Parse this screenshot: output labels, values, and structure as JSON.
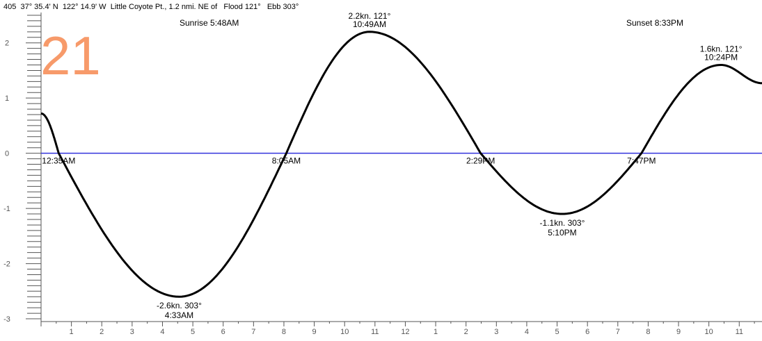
{
  "header": {
    "station_number": "405",
    "latitude": "37° 35.4' N",
    "longitude": "122° 14.9' W",
    "station_name": "Little Coyote Pt., 1.2 nmi. NE of",
    "flood": "Flood 121°",
    "ebb": "Ebb 303°"
  },
  "day_number": "21",
  "sunrise": "Sunrise 5:48AM",
  "sunset": "Sunset 8:33PM",
  "colors": {
    "curve": "#000000",
    "zero_line": "#3333dd",
    "day_number": "#f79a6a",
    "axis": "#555555"
  },
  "chart_data": {
    "type": "line",
    "title": "",
    "xlabel": "",
    "ylabel": "",
    "x_unit": "hours after midnight",
    "xlim": [
      0,
      23.75
    ],
    "ylim": [
      -3.05,
      2.55
    ],
    "x_tick_labels": [
      "1",
      "2",
      "3",
      "4",
      "5",
      "6",
      "7",
      "8",
      "9",
      "10",
      "11",
      "12",
      "1",
      "2",
      "3",
      "4",
      "5",
      "6",
      "7",
      "8",
      "9",
      "10",
      "11"
    ],
    "y_tick_labels": [
      "2",
      "1",
      "0",
      "-1",
      "-2",
      "-3"
    ],
    "y_tick_values": [
      2,
      1,
      0,
      -1,
      -2,
      -3
    ],
    "series": [
      {
        "points": [
          [
            0,
            0.72
          ],
          [
            0.58,
            0.0
          ],
          [
            4.55,
            -2.6
          ],
          [
            8.08,
            0.0
          ],
          [
            10.82,
            2.2
          ],
          [
            14.48,
            0.0
          ],
          [
            17.17,
            -1.1
          ],
          [
            19.78,
            0.0
          ],
          [
            22.4,
            1.6
          ],
          [
            23.75,
            1.27
          ]
        ]
      }
    ],
    "events": [
      {
        "kind": "slack",
        "time": "12:35AM",
        "x": 0.58,
        "y": 0
      },
      {
        "kind": "max_ebb",
        "speed": "-2.6kn. 303°",
        "time": "4:33AM",
        "x": 4.55,
        "y": -2.6
      },
      {
        "kind": "slack",
        "time": "8:05AM",
        "x": 8.08,
        "y": 0
      },
      {
        "kind": "max_flood",
        "speed": "2.2kn. 121°",
        "time": "10:49AM",
        "x": 10.82,
        "y": 2.2
      },
      {
        "kind": "slack",
        "time": "2:29PM",
        "x": 14.48,
        "y": 0
      },
      {
        "kind": "max_ebb",
        "speed": "-1.1kn. 303°",
        "time": "5:10PM",
        "x": 17.17,
        "y": -1.1
      },
      {
        "kind": "slack",
        "time": "7:47PM",
        "x": 19.78,
        "y": 0
      },
      {
        "kind": "max_flood",
        "speed": "1.6kn. 121°",
        "time": "10:24PM",
        "x": 22.4,
        "y": 1.6
      }
    ]
  }
}
